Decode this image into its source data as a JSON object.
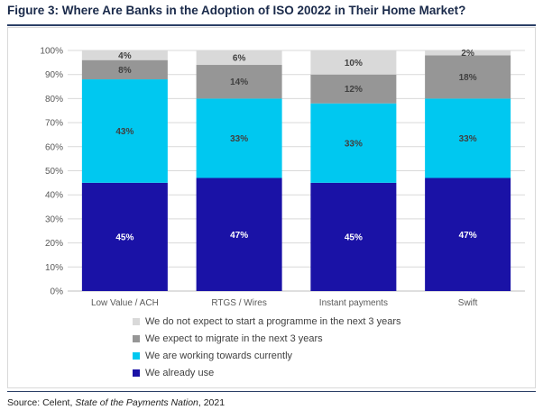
{
  "title": "Figure 3: Where Are Banks in the Adoption of ISO 20022 in Their Home Market?",
  "source": {
    "prefix": "Source: Celent, ",
    "italic": "State of the Payments Nation",
    "suffix": ", 2021"
  },
  "chart_data": {
    "type": "bar",
    "stacked": true,
    "categories": [
      "Low Value / ACH",
      "RTGS / Wires",
      "Instant payments",
      "Swift"
    ],
    "series": [
      {
        "name": "We already use",
        "values": [
          45,
          47,
          45,
          47
        ],
        "color": "#1a12a6",
        "label_color": "#ffffff",
        "labels": [
          "45%",
          "47%",
          "45%",
          "47%"
        ]
      },
      {
        "name": "We are working towards currently",
        "values": [
          43,
          33,
          33,
          33
        ],
        "color": "#00c8f0",
        "label_color": "#404040",
        "labels": [
          "43%",
          "33%",
          "33%",
          "33%"
        ]
      },
      {
        "name": "We expect to migrate in the next 3 years",
        "values": [
          8,
          14,
          12,
          18
        ],
        "color": "#969696",
        "label_color": "#404040",
        "labels": [
          "8%",
          "14%",
          "12%",
          "18%"
        ]
      },
      {
        "name": "We do not expect to start a programme in the next 3 years",
        "values": [
          4,
          6,
          10,
          2
        ],
        "color": "#d9d9d9",
        "label_color": "#404040",
        "labels": [
          "4%",
          "6%",
          "10%",
          "2%"
        ]
      }
    ],
    "yticks": [
      "0%",
      "10%",
      "20%",
      "30%",
      "40%",
      "50%",
      "60%",
      "70%",
      "80%",
      "90%",
      "100%"
    ],
    "ylim": [
      0,
      100
    ],
    "legend_order": [
      "We do not expect to start a programme in the next 3 years",
      "We expect to migrate in the next 3 years",
      "We are working towards currently",
      "We already use"
    ],
    "legend_position": "bottom",
    "grid": true
  }
}
